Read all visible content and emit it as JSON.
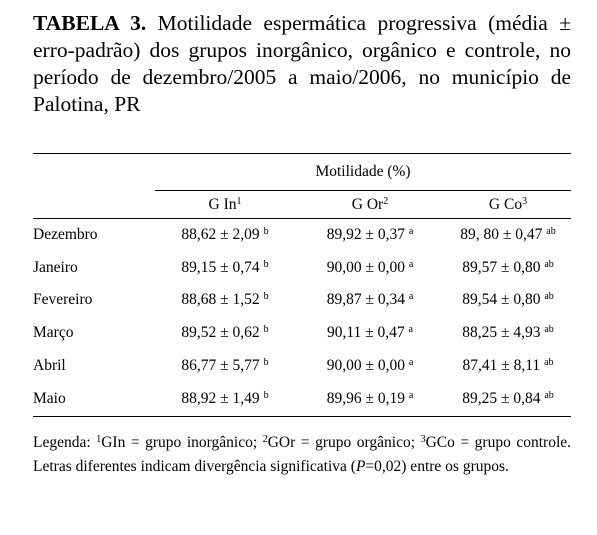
{
  "caption": {
    "label": "TABELA 3.",
    "text": "Motilidade espermática progressiva (média ± erro-padrão) dos grupos inorgânico, orgânico e controle, no período de dezembro/2005 a maio/2006, no município de Palotina, PR"
  },
  "table": {
    "group_header": "Motilidade (%)",
    "columns": [
      {
        "name": "G In",
        "sup": "1"
      },
      {
        "name": "G Or",
        "sup": "2"
      },
      {
        "name": "G Co",
        "sup": "3"
      }
    ],
    "rows": [
      {
        "month": "Dezembro",
        "cells": [
          {
            "value": "88,62 ± 2,09",
            "letter": "b"
          },
          {
            "value": "89,92 ± 0,37",
            "letter": "a"
          },
          {
            "value": "89, 80 ± 0,47",
            "letter": "ab"
          }
        ]
      },
      {
        "month": "Janeiro",
        "cells": [
          {
            "value": "89,15 ± 0,74",
            "letter": "b"
          },
          {
            "value": "90,00 ± 0,00",
            "letter": "a"
          },
          {
            "value": "89,57 ± 0,80",
            "letter": "ab"
          }
        ]
      },
      {
        "month": "Fevereiro",
        "cells": [
          {
            "value": "88,68 ± 1,52",
            "letter": "b"
          },
          {
            "value": "89,87 ± 0,34",
            "letter": "a"
          },
          {
            "value": "89,54 ± 0,80",
            "letter": "ab"
          }
        ]
      },
      {
        "month": "Março",
        "cells": [
          {
            "value": "89,52 ± 0,62",
            "letter": "b"
          },
          {
            "value": "90,11 ± 0,47",
            "letter": "a"
          },
          {
            "value": "88,25 ± 4,93",
            "letter": "ab"
          }
        ]
      },
      {
        "month": "Abril",
        "cells": [
          {
            "value": "86,77 ± 5,77",
            "letter": "b"
          },
          {
            "value": "90,00 ± 0,00",
            "letter": "a"
          },
          {
            "value": "87,41 ± 8,11",
            "letter": "ab"
          }
        ]
      },
      {
        "month": "Maio",
        "cells": [
          {
            "value": "88,92 ± 1,49",
            "letter": "b"
          },
          {
            "value": "89,96 ± 0,19",
            "letter": "a"
          },
          {
            "value": "89,25 ± 0,84",
            "letter": "ab"
          }
        ]
      }
    ]
  },
  "legend": {
    "intro": "Legenda:",
    "items": [
      {
        "sup": "1",
        "text": "GIn = grupo inorgânico;"
      },
      {
        "sup": "2",
        "text": "GOr = grupo orgânico;"
      },
      {
        "sup": "3",
        "text": "GCo = grupo controle."
      }
    ],
    "note_before": "Letras diferentes indicam divergência significativa (",
    "note_italic": "P",
    "note_after": "=0,02) entre os grupos."
  }
}
